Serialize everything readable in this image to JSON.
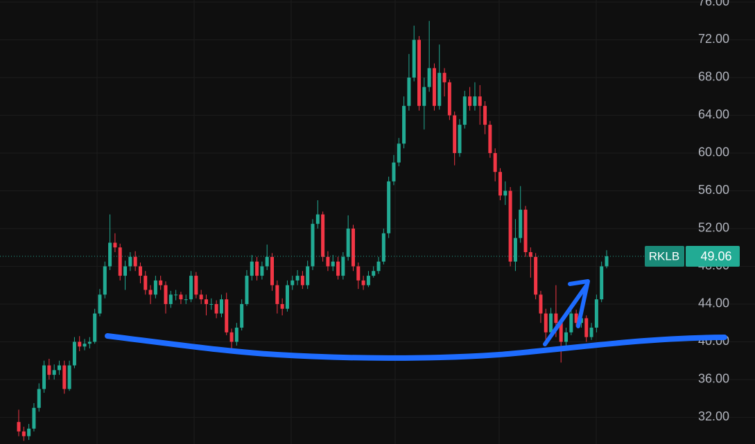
{
  "chart_data": {
    "type": "candlestick",
    "symbol": "RKLB",
    "up_color": "#22ab94",
    "down_color": "#f23645",
    "grid": true,
    "ylim": [
      29.17,
      76.22
    ],
    "yticks": [
      {
        "value": 32,
        "label": "32.00"
      },
      {
        "value": 36,
        "label": "36.00"
      },
      {
        "value": 40,
        "label": "40.00"
      },
      {
        "value": 44,
        "label": "44.00"
      },
      {
        "value": 48,
        "label": "48.00"
      },
      {
        "value": 52,
        "label": "52.00"
      },
      {
        "value": 56,
        "label": "56.00"
      },
      {
        "value": 60,
        "label": "60.00"
      },
      {
        "value": 64,
        "label": "64.00"
      },
      {
        "value": 68,
        "label": "68.00"
      },
      {
        "value": 72,
        "label": "72.00"
      },
      {
        "value": 76,
        "label": "76.00"
      }
    ],
    "open": [
      31.5,
      30.5,
      30,
      30.8,
      33,
      35,
      37.5,
      36.5,
      37,
      37.5,
      35,
      37.5,
      40,
      39.5,
      39.8,
      40,
      43,
      45,
      48,
      50.5,
      50,
      47,
      48,
      49,
      48,
      47,
      45.5,
      45,
      46.5,
      46,
      44,
      45,
      45,
      44.5,
      44.5,
      47,
      45,
      44.5,
      44,
      44,
      43,
      44.5,
      41,
      40,
      41.5,
      44,
      47,
      48.5,
      47,
      48,
      49,
      46,
      44,
      43.5,
      46,
      46.5,
      47,
      46,
      48,
      52.5,
      53.5,
      49,
      48,
      48.5,
      47,
      49,
      52,
      48,
      46.5,
      46,
      47,
      47.5,
      48.5,
      51.5,
      57,
      59,
      61,
      65,
      68,
      72,
      65,
      67,
      69,
      65,
      68.5,
      67.5,
      64,
      60,
      63,
      66,
      65,
      66,
      65,
      63,
      60,
      58,
      55.5,
      56,
      48.5,
      51,
      54,
      49.5,
      49,
      45,
      43,
      41,
      43,
      42,
      40,
      41,
      43,
      42,
      42.5,
      40.5,
      41.5,
      44.5,
      48
    ],
    "high": [
      32.8,
      31,
      31.3,
      33.5,
      35.6,
      38,
      38.2,
      37.6,
      38,
      38,
      38,
      40.5,
      40.6,
      40.3,
      40.5,
      43.5,
      45.6,
      48.5,
      53.5,
      51.5,
      50.4,
      48.6,
      49.5,
      49.6,
      48.4,
      47.5,
      46,
      47,
      47,
      46.4,
      45.4,
      45.5,
      45.3,
      45,
      47.5,
      47.4,
      45.5,
      45,
      44.6,
      44.4,
      45,
      45.2,
      41.4,
      42,
      44.5,
      47.6,
      49.2,
      49,
      48.5,
      50.3,
      49.4,
      46.5,
      44.6,
      46.5,
      47,
      47.6,
      47.5,
      48.6,
      53,
      55,
      53.8,
      49.6,
      49.2,
      49,
      49.5,
      53.4,
      52.4,
      48.4,
      47,
      47.5,
      48,
      49,
      52,
      57.5,
      59.8,
      61.6,
      66,
      70.5,
      73.5,
      72.4,
      68,
      74,
      69.5,
      71.5,
      69,
      67.8,
      64.4,
      63.6,
      66.6,
      67,
      67.5,
      67.2,
      65.5,
      63.4,
      60.5,
      58.4,
      57,
      56.4,
      53,
      56.5,
      54.4,
      50,
      49.4,
      45.4,
      43.5,
      43.6,
      46,
      42.4,
      41.5,
      43.5,
      43.4,
      43,
      42.8,
      42,
      45,
      48.5,
      49.7
    ],
    "low": [
      30,
      29.5,
      29.6,
      30.5,
      32.6,
      34.6,
      36,
      36,
      36.5,
      34.5,
      34.8,
      37.2,
      39,
      39.1,
      39.3,
      39.8,
      42.7,
      44.6,
      47.6,
      49.5,
      46.5,
      45.5,
      47.5,
      47.5,
      46.2,
      45,
      44,
      44.6,
      45.5,
      43,
      43.6,
      44.4,
      44,
      44,
      44.2,
      44.6,
      44,
      42.8,
      43.4,
      42.5,
      42.6,
      40.7,
      38.8,
      39.6,
      41.2,
      43.8,
      46.5,
      46.5,
      46.6,
      47.6,
      45.4,
      43,
      42.8,
      43.2,
      45.5,
      46,
      45.6,
      45.6,
      47.6,
      52,
      48.5,
      47.5,
      47.5,
      46.6,
      46.6,
      48.6,
      47.5,
      45.6,
      45.5,
      45.8,
      46.8,
      47.2,
      48.2,
      51,
      56.6,
      58.6,
      60.5,
      64.5,
      67.6,
      64.5,
      62.5,
      66.5,
      64.5,
      64.6,
      66,
      63.5,
      58.7,
      59.6,
      62.6,
      64.5,
      64.5,
      63,
      62,
      59.5,
      57,
      55,
      54.5,
      48,
      47.5,
      50.5,
      49,
      46.8,
      44.5,
      42,
      40,
      40.5,
      40.5,
      37.8,
      39.6,
      40.7,
      41.6,
      41.5,
      40,
      40.2,
      41,
      44.2,
      47.8
    ],
    "close": [
      30.5,
      30,
      30.8,
      33,
      35,
      37.5,
      36.5,
      37,
      37.5,
      35,
      37.5,
      40,
      39.5,
      39.8,
      40,
      43,
      45,
      48,
      50.5,
      50,
      47,
      48,
      49,
      48,
      47,
      45.5,
      45,
      46.5,
      46,
      44,
      45,
      45,
      44.5,
      44.5,
      47,
      45,
      44.5,
      44,
      44,
      43,
      44.5,
      41,
      40,
      41.5,
      44,
      47,
      48.5,
      47,
      48,
      49,
      46,
      44,
      43.5,
      46,
      46.5,
      47,
      46,
      48,
      52.5,
      53.5,
      49,
      48,
      48.5,
      47,
      49,
      52,
      48,
      46.5,
      46,
      47,
      47.5,
      48.5,
      51.5,
      57,
      59,
      61,
      65,
      68,
      72,
      65,
      67,
      69,
      65,
      68.5,
      67.5,
      64,
      60,
      63,
      66,
      65,
      66,
      65,
      63,
      60,
      58,
      55.5,
      56,
      48.5,
      51,
      54,
      49.5,
      49,
      45,
      43,
      41,
      43,
      42,
      40,
      41,
      43,
      42,
      42.5,
      40.5,
      41.5,
      44.5,
      48,
      49.06
    ]
  }
}
